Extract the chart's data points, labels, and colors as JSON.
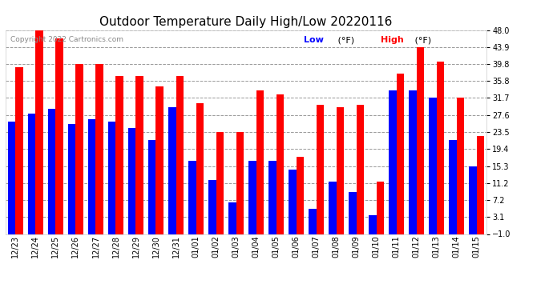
{
  "title": "Outdoor Temperature Daily High/Low 20220116",
  "copyright": "Copyright 2022 Cartronics.com",
  "legend_low": "Low",
  "legend_high": "High",
  "legend_unit": "(°F)",
  "dates": [
    "12/23",
    "12/24",
    "12/25",
    "12/26",
    "12/27",
    "12/28",
    "12/29",
    "12/30",
    "12/31",
    "01/01",
    "01/02",
    "01/03",
    "01/04",
    "01/05",
    "01/06",
    "01/07",
    "01/08",
    "01/09",
    "01/10",
    "01/11",
    "01/12",
    "01/13",
    "01/14",
    "01/15"
  ],
  "highs": [
    39.0,
    48.0,
    46.0,
    39.8,
    39.8,
    37.0,
    37.0,
    34.5,
    37.0,
    30.5,
    23.5,
    23.5,
    33.5,
    32.5,
    17.5,
    30.0,
    29.5,
    30.0,
    11.5,
    37.5,
    43.9,
    40.5,
    31.7,
    22.5
  ],
  "lows": [
    26.0,
    28.0,
    29.0,
    25.5,
    26.5,
    26.0,
    24.5,
    21.5,
    29.5,
    16.5,
    12.0,
    6.5,
    16.5,
    16.5,
    14.5,
    5.0,
    11.5,
    9.0,
    3.5,
    33.5,
    33.5,
    31.7,
    21.5,
    15.3
  ],
  "ylim_min": -1.0,
  "ylim_max": 48.0,
  "yticks": [
    48.0,
    43.9,
    39.8,
    35.8,
    31.7,
    27.6,
    23.5,
    19.4,
    15.3,
    11.2,
    7.2,
    3.1,
    -1.0
  ],
  "bar_width": 0.38,
  "high_color": "#ff0000",
  "low_color": "#0000ff",
  "bg_color": "#ffffff",
  "grid_color": "#999999",
  "title_fontsize": 11,
  "tick_fontsize": 7,
  "copyright_fontsize": 6.5,
  "legend_fontsize": 8
}
